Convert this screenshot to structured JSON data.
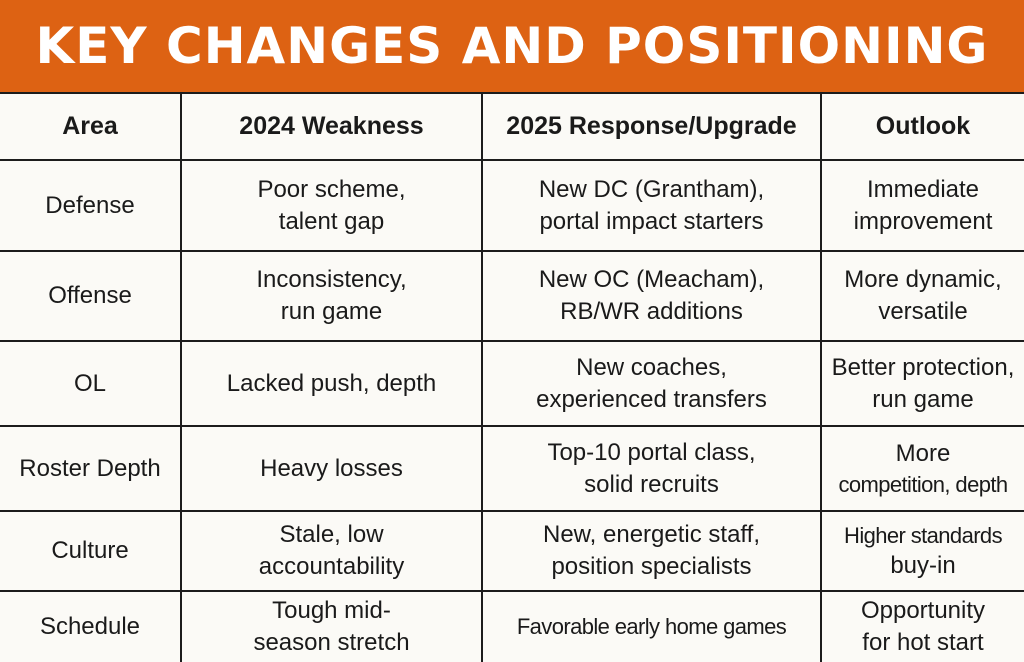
{
  "title": "KEY CHANGES AND POSITIONING",
  "table": {
    "headers": [
      "Area",
      "2024 Weakness",
      "2025 Response/Upgrade",
      "Outlook"
    ],
    "rows": [
      {
        "area": "Defense",
        "weakness": [
          "Poor scheme,",
          "talent gap"
        ],
        "response": [
          "New DC (Grantham),",
          "portal impact starters"
        ],
        "outlook": [
          "Immediate",
          "improvement"
        ]
      },
      {
        "area": "Offense",
        "weakness": [
          "Inconsistency,",
          "run game"
        ],
        "response": [
          "New OC (Meacham),",
          "RB/WR additions"
        ],
        "outlook": [
          "More dynamic,",
          "versatile"
        ]
      },
      {
        "area": "OL",
        "weakness": [
          "Lacked push, depth"
        ],
        "response": [
          "New coaches,",
          "experienced transfers"
        ],
        "outlook": [
          "Better protection,",
          "run game"
        ]
      },
      {
        "area": "Roster Depth",
        "weakness": [
          "Heavy losses"
        ],
        "response": [
          "Top-10 portal class,",
          "solid recruits"
        ],
        "outlook": [
          "More",
          "competition, depth"
        ]
      },
      {
        "area": "Culture",
        "weakness": [
          "Stale, low",
          "accountability"
        ],
        "response": [
          "New, energetic staff,",
          "position specialists"
        ],
        "outlook": [
          "Higher standards",
          "buy-in"
        ]
      },
      {
        "area": "Schedule",
        "weakness": [
          "Tough mid-",
          "season stretch"
        ],
        "response": [
          "Favorable early home games"
        ],
        "outlook": [
          "Opportunity",
          "for hot start"
        ]
      }
    ]
  }
}
